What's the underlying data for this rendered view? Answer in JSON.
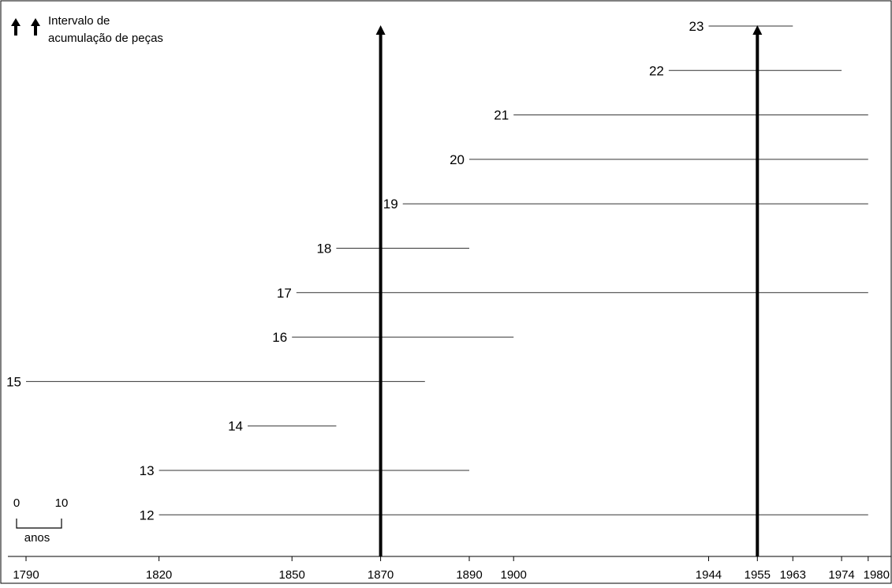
{
  "chart_data": {
    "type": "timeline",
    "title": "",
    "legend": {
      "line1": "Intervalo de",
      "line2": "acumulação de peças",
      "icon": "arrow-up-icon"
    },
    "scale_bar": {
      "from_label": "0",
      "to_label": "10",
      "unit": "anos",
      "years": 10
    },
    "x_ticks": [
      1790,
      1820,
      1850,
      1870,
      1890,
      1900,
      1944,
      1955,
      1963,
      1974,
      1980
    ],
    "xlim": [
      1790,
      1980
    ],
    "intervals": [
      {
        "label": "12",
        "start": 1820,
        "end": 1980
      },
      {
        "label": "13",
        "start": 1820,
        "end": 1890
      },
      {
        "label": "14",
        "start": 1840,
        "end": 1860
      },
      {
        "label": "15",
        "start": 1790,
        "end": 1880
      },
      {
        "label": "16",
        "start": 1850,
        "end": 1900
      },
      {
        "label": "17",
        "start": 1851,
        "end": 1980
      },
      {
        "label": "18",
        "start": 1860,
        "end": 1890
      },
      {
        "label": "19",
        "start": 1875,
        "end": 1980
      },
      {
        "label": "20",
        "start": 1890,
        "end": 1980
      },
      {
        "label": "21",
        "start": 1900,
        "end": 1980
      },
      {
        "label": "22",
        "start": 1935,
        "end": 1974
      },
      {
        "label": "23",
        "start": 1944,
        "end": 1963
      }
    ],
    "markers": [
      1870,
      1955
    ],
    "colors": {
      "line": "#333333",
      "marker": "#000000",
      "frame": "#000000"
    }
  }
}
